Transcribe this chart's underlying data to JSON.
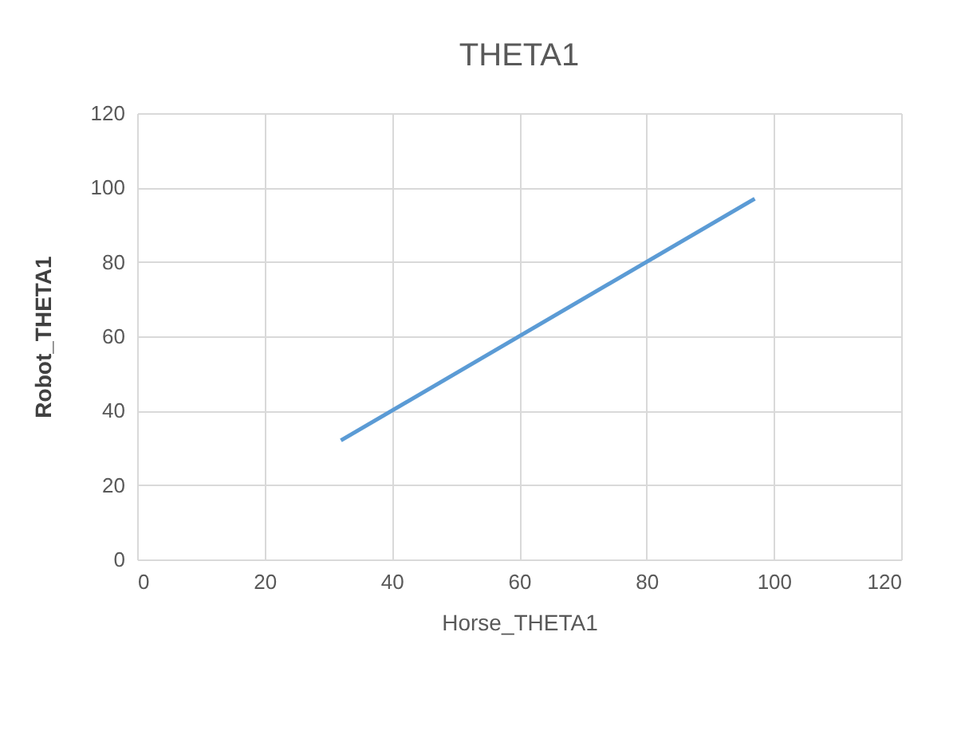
{
  "chart_data": {
    "type": "line",
    "title": "THETA1",
    "xlabel": "Horse_THETA1",
    "ylabel": "Robot_THETA1",
    "x": [
      32,
      97
    ],
    "series": [
      {
        "color": "#5b9bd5",
        "values": [
          32,
          97
        ]
      }
    ],
    "xlim": [
      0,
      120
    ],
    "xticks": [
      0,
      20,
      40,
      60,
      80,
      100,
      120
    ],
    "ylim": [
      0,
      120
    ],
    "yticks": [
      0,
      20,
      40,
      60,
      80,
      100,
      120
    ],
    "grid": true,
    "marker": "none",
    "line_style": "solid"
  }
}
